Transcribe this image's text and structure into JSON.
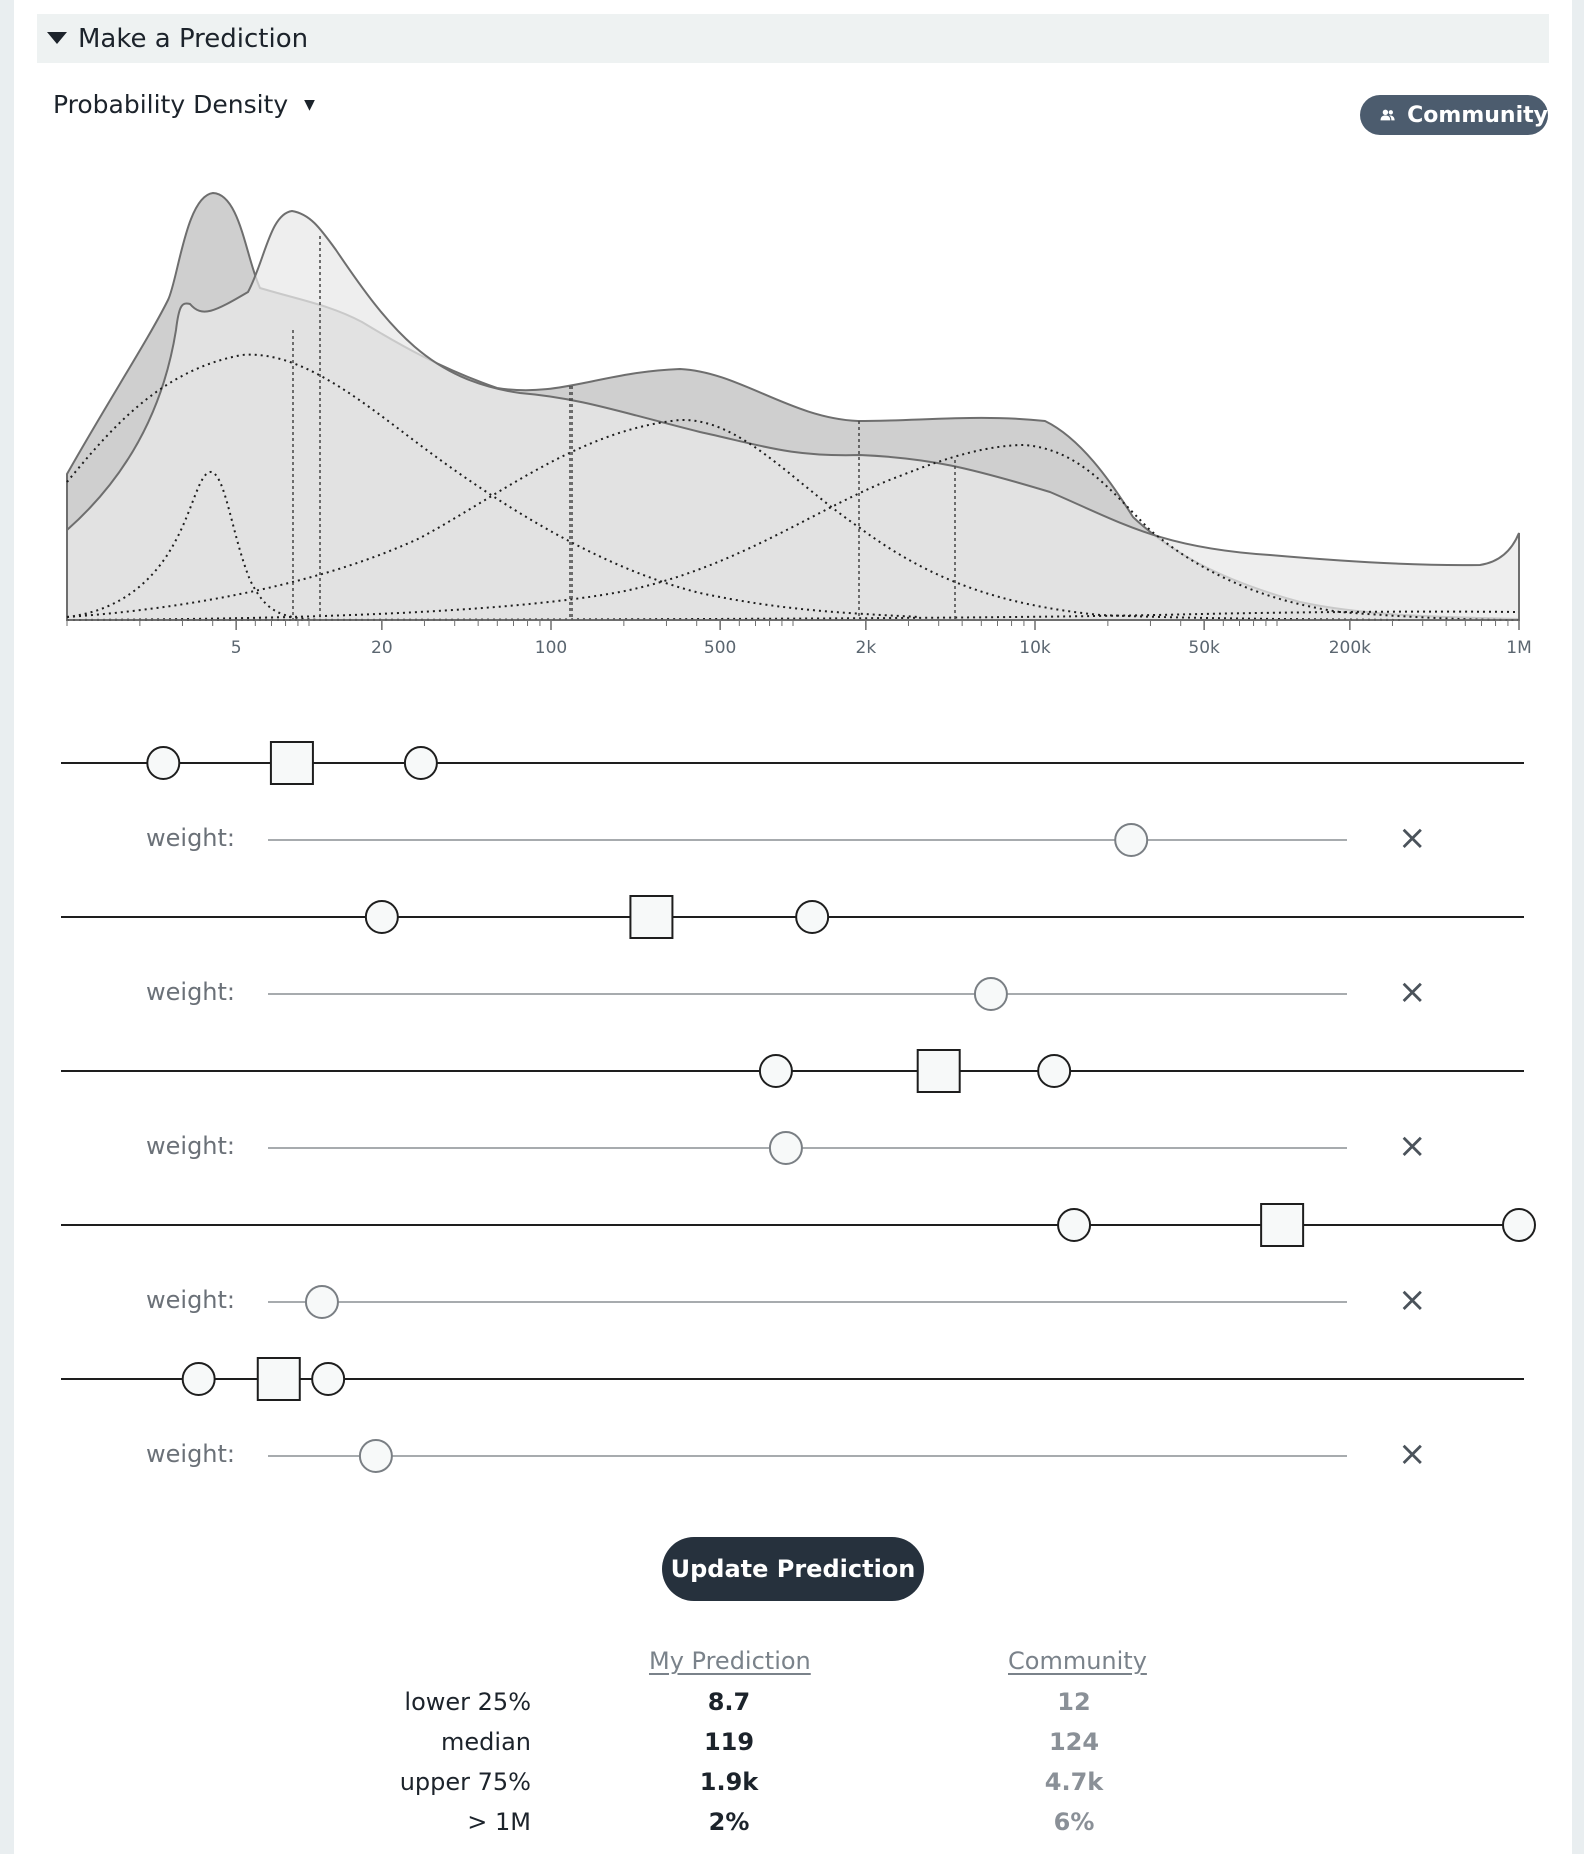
{
  "section": {
    "title": "Make a Prediction"
  },
  "view_select": {
    "label": "Probability Density"
  },
  "community_toggle": {
    "label": "Community",
    "color": "#4c5c6e"
  },
  "chart_data": {
    "type": "area",
    "x_scale": "log",
    "xlim": [
      1,
      1000000
    ],
    "x_tick_labels": [
      "5",
      "20",
      "100",
      "500",
      "2k",
      "10k",
      "50k",
      "200k",
      "1M"
    ],
    "x_tick_values": [
      5,
      20,
      100,
      500,
      2000,
      10000,
      50000,
      200000,
      1000000
    ],
    "community_quartile_markers": [
      12,
      124,
      4700
    ],
    "my_quartile_markers": [
      8.7,
      119,
      1900
    ]
  },
  "components": [
    {
      "low": 2.5,
      "center": 8.5,
      "high": 29,
      "weight": 0.8
    },
    {
      "low": 20,
      "center": 260,
      "high": 1200,
      "weight": 0.67
    },
    {
      "low": 850,
      "center": 4000,
      "high": 12000,
      "weight": 0.48
    },
    {
      "low": 14500,
      "center": 105000,
      "high": 1000000,
      "weight": 0.05
    },
    {
      "low": 3.5,
      "center": 7.5,
      "high": 12,
      "weight": 0.1
    }
  ],
  "weight_label": "weight:",
  "remove_symbol": "×",
  "update_button": {
    "label": "Update Prediction"
  },
  "summary": {
    "headers": {
      "mine": "My Prediction",
      "community": "Community"
    },
    "rows": [
      {
        "label": "lower 25%",
        "mine": "8.7",
        "community": "12"
      },
      {
        "label": "median",
        "mine": "119",
        "community": "124"
      },
      {
        "label": "upper 75%",
        "mine": "1.9k",
        "community": "4.7k"
      },
      {
        "label": "> 1M",
        "mine": "2%",
        "community": "6%"
      }
    ]
  }
}
